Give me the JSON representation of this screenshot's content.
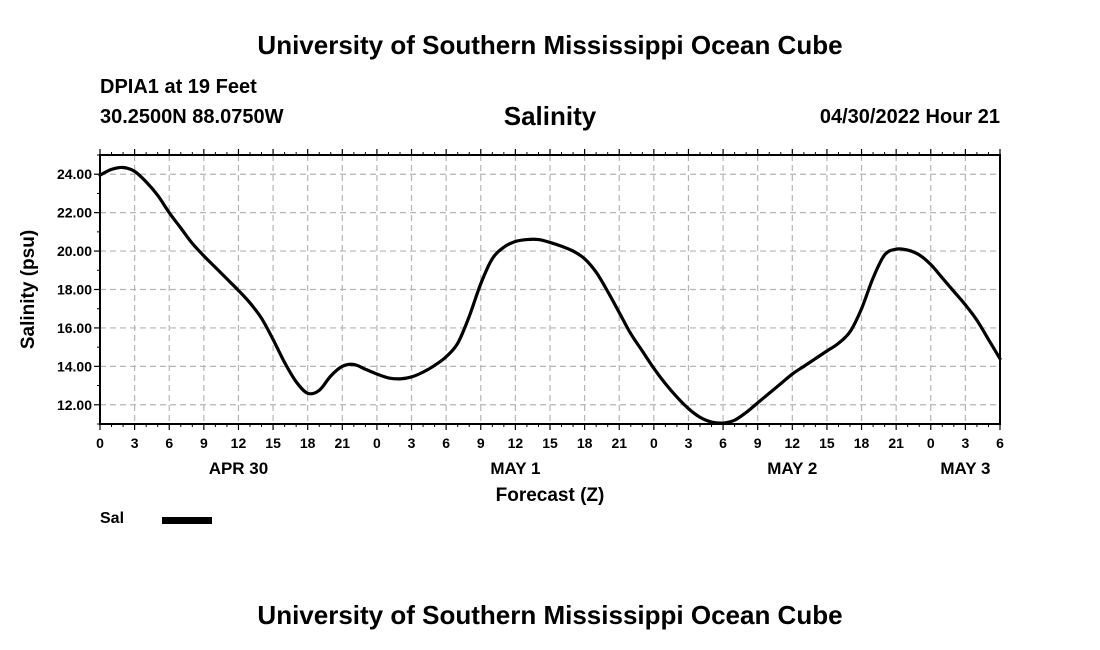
{
  "header": {
    "title": "University of Southern Mississippi Ocean Cube",
    "station": "DPIA1 at 19 Feet",
    "coordinates": "30.2500N  88.0750W",
    "timestamp": "04/30/2022 Hour 21"
  },
  "footer": {
    "title": "University of Southern Mississippi Ocean Cube"
  },
  "legend": {
    "label": "Sal",
    "color": "#000000"
  },
  "chart_data": {
    "type": "line",
    "title": "Salinity",
    "xlabel": "Forecast (Z)",
    "ylabel": "Salinity (psu)",
    "xlim": [
      0,
      78
    ],
    "ylim": [
      11,
      25
    ],
    "grid": true,
    "legend_position": "bottom-left",
    "y_ticks": [
      12,
      14,
      16,
      18,
      20,
      22,
      24
    ],
    "y_tick_labels": [
      "12.00",
      "14.00",
      "16.00",
      "18.00",
      "20.00",
      "22.00",
      "24.00"
    ],
    "x_ticks": [
      0,
      3,
      6,
      9,
      12,
      15,
      18,
      21,
      24,
      27,
      30,
      33,
      36,
      39,
      42,
      45,
      48,
      51,
      54,
      57,
      60,
      63,
      66,
      69,
      72,
      75,
      78
    ],
    "x_tick_labels": [
      "0",
      "3",
      "6",
      "9",
      "12",
      "15",
      "18",
      "21",
      "0",
      "3",
      "6",
      "9",
      "12",
      "15",
      "18",
      "21",
      "0",
      "3",
      "6",
      "9",
      "12",
      "15",
      "18",
      "21",
      "0",
      "3",
      "6"
    ],
    "day_labels": [
      {
        "hour": 12,
        "label": "APR 30"
      },
      {
        "hour": 36,
        "label": "MAY 1"
      },
      {
        "hour": 60,
        "label": "MAY 2"
      },
      {
        "hour": 75,
        "label": "MAY 3"
      }
    ],
    "series": [
      {
        "name": "Sal",
        "color": "#000000",
        "x": [
          0,
          1,
          2,
          3,
          4,
          5,
          6,
          7,
          8,
          9,
          10,
          11,
          12,
          13,
          14,
          15,
          16,
          17,
          18,
          19,
          20,
          21,
          22,
          23,
          24,
          25,
          26,
          27,
          28,
          29,
          30,
          31,
          32,
          33,
          34,
          35,
          36,
          37,
          38,
          39,
          40,
          41,
          42,
          43,
          44,
          45,
          46,
          47,
          48,
          49,
          50,
          51,
          52,
          53,
          54,
          55,
          56,
          57,
          58,
          59,
          60,
          61,
          62,
          63,
          64,
          65,
          66,
          67,
          68,
          69,
          70,
          71,
          72,
          73,
          74,
          75,
          76,
          77,
          78
        ],
        "values": [
          23.95,
          24.25,
          24.35,
          24.15,
          23.6,
          22.9,
          22.0,
          21.2,
          20.4,
          19.75,
          19.15,
          18.55,
          17.95,
          17.3,
          16.5,
          15.4,
          14.2,
          13.2,
          12.6,
          12.75,
          13.5,
          14.0,
          14.1,
          13.85,
          13.6,
          13.4,
          13.35,
          13.45,
          13.7,
          14.05,
          14.5,
          15.2,
          16.6,
          18.3,
          19.6,
          20.2,
          20.5,
          20.6,
          20.6,
          20.45,
          20.25,
          20.0,
          19.6,
          18.9,
          17.9,
          16.8,
          15.7,
          14.8,
          13.9,
          13.1,
          12.4,
          11.8,
          11.35,
          11.1,
          11.05,
          11.2,
          11.6,
          12.1,
          12.6,
          13.1,
          13.6,
          14.0,
          14.4,
          14.8,
          15.2,
          15.8,
          17.0,
          18.6,
          19.8,
          20.1,
          20.05,
          19.8,
          19.3,
          18.6,
          17.9,
          17.2,
          16.4,
          15.4,
          14.4
        ]
      }
    ]
  }
}
